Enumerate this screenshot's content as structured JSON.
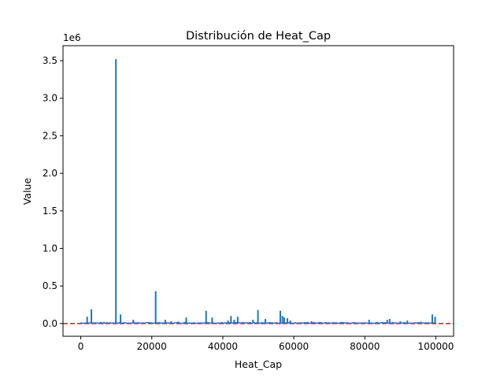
{
  "chart_data": {
    "type": "line",
    "title": "Distribución de Heat_Cap",
    "xlabel": "Heat_Cap",
    "ylabel": "Value",
    "offset_label": "1e6",
    "xlim": [
      -5000,
      105000
    ],
    "ylim": [
      -170000,
      3700000
    ],
    "x_ticks": [
      0,
      20000,
      40000,
      60000,
      80000,
      100000
    ],
    "x_tick_labels": [
      "0",
      "20000",
      "40000",
      "60000",
      "80000",
      "100000"
    ],
    "y_ticks": [
      0,
      500000,
      1000000,
      1500000,
      2000000,
      2500000,
      3000000,
      3500000
    ],
    "y_tick_labels": [
      "0.0",
      "0.5",
      "1.0",
      "1.5",
      "2.0",
      "2.5",
      "3.0",
      "3.5"
    ],
    "grid": false,
    "series": [
      {
        "color": "#1f77b4",
        "x_range": [
          0,
          100000
        ],
        "baseline": 5000,
        "spikes": [
          [
            1800,
            90000
          ],
          [
            3000,
            190000
          ],
          [
            6500,
            20000
          ],
          [
            9900,
            3520000
          ],
          [
            11200,
            120000
          ],
          [
            14800,
            50000
          ],
          [
            21100,
            430000
          ],
          [
            23800,
            50000
          ],
          [
            25500,
            30000
          ],
          [
            27500,
            25000
          ],
          [
            29700,
            80000
          ],
          [
            35300,
            170000
          ],
          [
            37000,
            80000
          ],
          [
            41500,
            40000
          ],
          [
            42300,
            100000
          ],
          [
            43200,
            50000
          ],
          [
            44200,
            90000
          ],
          [
            48500,
            50000
          ],
          [
            49900,
            180000
          ],
          [
            52000,
            60000
          ],
          [
            56200,
            170000
          ],
          [
            56800,
            100000
          ],
          [
            57300,
            80000
          ],
          [
            58200,
            70000
          ],
          [
            59000,
            40000
          ],
          [
            65000,
            30000
          ],
          [
            73500,
            20000
          ],
          [
            81200,
            50000
          ],
          [
            86300,
            50000
          ],
          [
            87000,
            60000
          ],
          [
            90000,
            30000
          ],
          [
            92000,
            40000
          ],
          [
            95800,
            25000
          ],
          [
            99000,
            120000
          ],
          [
            99800,
            90000
          ]
        ]
      }
    ],
    "reference_line": {
      "y": 0,
      "color": "#d62728",
      "style": "dashed"
    }
  }
}
